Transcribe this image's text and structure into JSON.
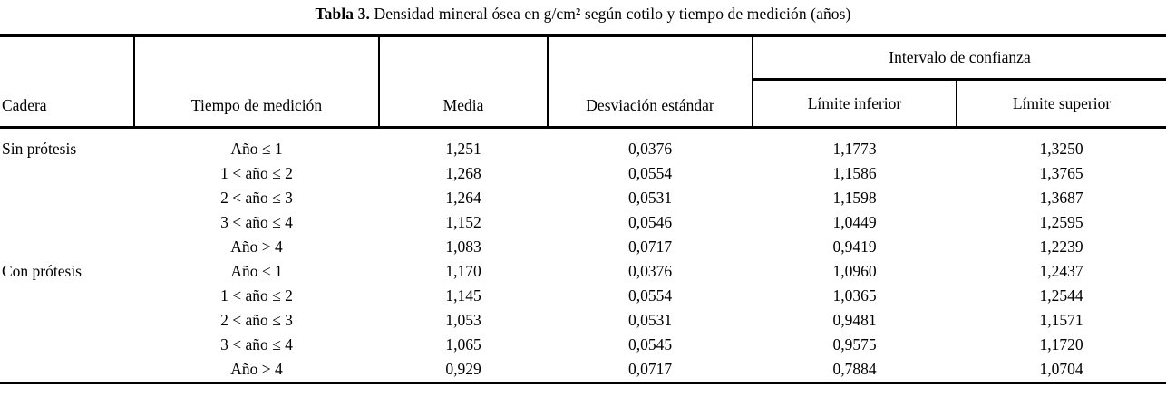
{
  "title": {
    "label": "Tabla 3.",
    "text": "Densidad mineral ósea en g/cm² según cotilo y tiempo de medición (años)"
  },
  "header": {
    "cadera": "Cadera",
    "tiempo": "Tiempo de medición",
    "media": "Media",
    "desviacion": "Desviación estándar",
    "intervalo": "Intervalo de confianza",
    "limite_inferior": "Límite inferior",
    "limite_superior": "Límite superior"
  },
  "rows": [
    {
      "cadera": "Sin prótesis",
      "tiempo": "Año ≤ 1",
      "media": "1,251",
      "desviacion": "0,0376",
      "limite_inferior": "1,1773",
      "limite_superior": "1,3250"
    },
    {
      "cadera": "",
      "tiempo": "1 < año ≤ 2",
      "media": "1,268",
      "desviacion": "0,0554",
      "limite_inferior": "1,1586",
      "limite_superior": "1,3765"
    },
    {
      "cadera": "",
      "tiempo": "2 < año ≤ 3",
      "media": "1,264",
      "desviacion": "0,0531",
      "limite_inferior": "1,1598",
      "limite_superior": "1,3687"
    },
    {
      "cadera": "",
      "tiempo": "3 < año ≤ 4",
      "media": "1,152",
      "desviacion": "0,0546",
      "limite_inferior": "1,0449",
      "limite_superior": "1,2595"
    },
    {
      "cadera": "",
      "tiempo": "Año > 4",
      "media": "1,083",
      "desviacion": "0,0717",
      "limite_inferior": "0,9419",
      "limite_superior": "1,2239"
    },
    {
      "cadera": "Con prótesis",
      "tiempo": "Año ≤ 1",
      "media": "1,170",
      "desviacion": "0,0376",
      "limite_inferior": "1,0960",
      "limite_superior": "1,2437"
    },
    {
      "cadera": "",
      "tiempo": "1 < año ≤ 2",
      "media": "1,145",
      "desviacion": "0,0554",
      "limite_inferior": "1,0365",
      "limite_superior": "1,2544"
    },
    {
      "cadera": "",
      "tiempo": "2 < año ≤ 3",
      "media": "1,053",
      "desviacion": "0,0531",
      "limite_inferior": "0,9481",
      "limite_superior": "1,1571"
    },
    {
      "cadera": "",
      "tiempo": "3 < año ≤ 4",
      "media": "1,065",
      "desviacion": "0,0545",
      "limite_inferior": "0,9575",
      "limite_superior": "1,1720"
    },
    {
      "cadera": "",
      "tiempo": "Año > 4",
      "media": "0,929",
      "desviacion": "0,0717",
      "limite_inferior": "0,7884",
      "limite_superior": "1,0704"
    }
  ],
  "chart_data": {
    "type": "table",
    "title": "Tabla 3. Densidad mineral ósea en g/cm² según cotilo y tiempo de medición (años)",
    "columns": [
      "Cadera",
      "Tiempo de medición",
      "Media",
      "Desviación estándar",
      "Límite inferior",
      "Límite superior"
    ],
    "rows": [
      [
        "Sin prótesis",
        "Año ≤ 1",
        "1,251",
        "0,0376",
        "1,1773",
        "1,3250"
      ],
      [
        "",
        "1 < año ≤ 2",
        "1,268",
        "0,0554",
        "1,1586",
        "1,3765"
      ],
      [
        "",
        "2 < año ≤ 3",
        "1,264",
        "0,0531",
        "1,1598",
        "1,3687"
      ],
      [
        "",
        "3 < año ≤ 4",
        "1,152",
        "0,0546",
        "1,0449",
        "1,2595"
      ],
      [
        "",
        "Año > 4",
        "1,083",
        "0,0717",
        "0,9419",
        "1,2239"
      ],
      [
        "Con prótesis",
        "Año ≤ 1",
        "1,170",
        "0,0376",
        "1,0960",
        "1,2437"
      ],
      [
        "",
        "1 < año ≤ 2",
        "1,145",
        "0,0554",
        "1,0365",
        "1,2544"
      ],
      [
        "",
        "2 < año ≤ 3",
        "1,053",
        "0,0531",
        "0,9481",
        "1,1571"
      ],
      [
        "",
        "3 < año ≤ 4",
        "1,065",
        "0,0545",
        "0,9575",
        "1,1720"
      ],
      [
        "",
        "Año > 4",
        "0,929",
        "0,0717",
        "0,7884",
        "1,0704"
      ]
    ]
  }
}
